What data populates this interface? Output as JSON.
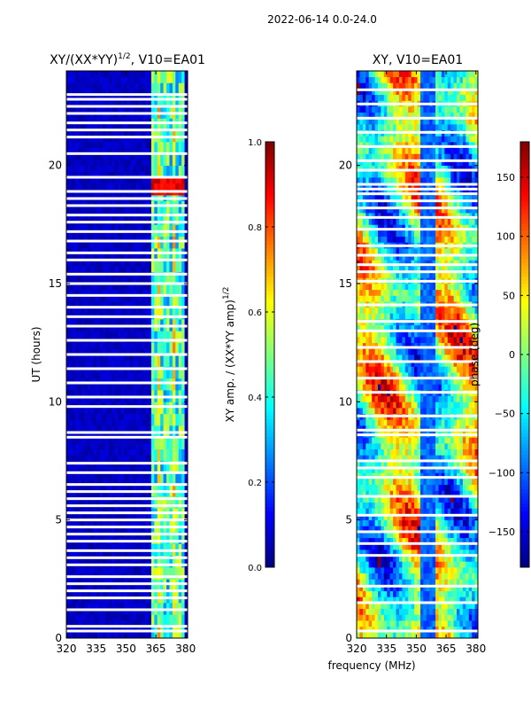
{
  "figure": {
    "suptitle": "2022-06-14 0.0-24.0",
    "xlabel_shared": "frequency (MHz)"
  },
  "colors": {
    "jet": [
      "#00007f",
      "#0000ff",
      "#007fff",
      "#00ffff",
      "#7fff7f",
      "#ffff00",
      "#ff7f00",
      "#ff0000",
      "#7f0000"
    ],
    "flag": "#ffffff",
    "axis": "#000000"
  },
  "chart_data": [
    {
      "type": "heatmap",
      "title_base": "XY/(XX*YY)",
      "title_sup": "1/2",
      "title_tail": ", V10=EA01",
      "xlabel": "",
      "ylabel": "UT (hours)",
      "xlim": [
        320,
        381
      ],
      "ylim": [
        0,
        24
      ],
      "xticks": [
        320,
        335,
        350,
        365,
        380
      ],
      "yticks": [
        0,
        5,
        10,
        15,
        20
      ],
      "vmin": 0.0,
      "vmax": 1.0,
      "colorbar": {
        "label_base": "XY amp. / (XX*YY amp)",
        "label_sup": "1/2",
        "ticks": [
          0.0,
          0.2,
          0.4,
          0.6,
          0.8,
          1.0
        ],
        "tick_labels": [
          "0.0",
          "0.2",
          "0.4",
          "0.6",
          "0.8",
          "1.0"
        ]
      },
      "flagged_hours": [
        0.3,
        0.5,
        1.2,
        1.7,
        2.0,
        2.3,
        2.6,
        3.1,
        3.4,
        3.7,
        4.1,
        4.4,
        4.7,
        5.0,
        5.3,
        5.6,
        5.9,
        6.2,
        6.5,
        7.0,
        7.4,
        8.5,
        8.7,
        9.8,
        10.2,
        10.8,
        11.4,
        12.0,
        12.6,
        13.2,
        13.6,
        14.0,
        14.5,
        15.0,
        15.4,
        16.0,
        16.3,
        16.8,
        17.2,
        17.6,
        17.9,
        18.3,
        18.6,
        18.9,
        19.5,
        20.5,
        21.2,
        21.5,
        21.8,
        22.2,
        22.5,
        22.8,
        23.0
      ],
      "high_freq_band_mhz": [
        363,
        380
      ],
      "rfi_hotspot": {
        "freq_mhz": [
          362,
          380
        ],
        "hours": [
          18.8,
          19.5
        ],
        "value": 0.85
      }
    },
    {
      "type": "heatmap",
      "title": "XY, V10=EA01",
      "xlabel": "frequency (MHz)",
      "ylabel": "",
      "xlim": [
        320,
        381
      ],
      "ylim": [
        0,
        24
      ],
      "xticks": [
        320,
        335,
        350,
        365,
        380
      ],
      "yticks": [
        0,
        5,
        10,
        15,
        20
      ],
      "vmin": -180,
      "vmax": 180,
      "colorbar": {
        "label": "phase (deg)",
        "ticks": [
          -150,
          -100,
          -50,
          0,
          50,
          100,
          150
        ],
        "tick_labels": [
          "−150",
          "−100",
          "−50",
          "0",
          "50",
          "100",
          "150"
        ]
      },
      "flagged_hours": [
        0.3,
        1.5,
        2.2,
        3.5,
        4.0,
        4.5,
        5.2,
        6.0,
        6.8,
        7.2,
        7.5,
        8.6,
        8.8,
        9.4,
        10.4,
        11.0,
        11.7,
        12.3,
        13.0,
        13.4,
        14.1,
        15.1,
        15.5,
        15.8,
        16.2,
        16.6,
        17.3,
        17.8,
        18.2,
        18.5,
        18.8,
        19.0,
        19.2,
        19.8,
        20.2,
        20.8,
        21.4,
        22.0,
        22.6,
        23.2
      ]
    }
  ]
}
